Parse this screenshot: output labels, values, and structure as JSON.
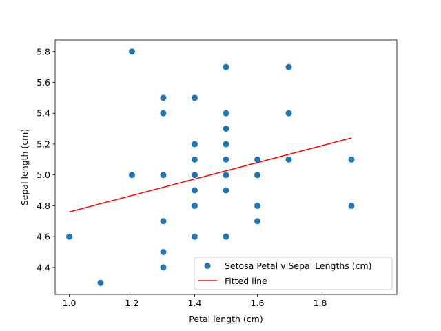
{
  "chart_data": {
    "type": "scatter",
    "title": "",
    "xlabel": "Petal length (cm)",
    "ylabel": "Sepal length (cm)",
    "xlim": [
      0.955,
      2.045
    ],
    "ylim": [
      4.225,
      5.875
    ],
    "x_ticks": [
      1.0,
      1.2,
      1.4,
      1.6,
      1.8
    ],
    "x_tick_labels": [
      "1.0",
      "1.2",
      "1.4",
      "1.6",
      "1.8"
    ],
    "y_ticks": [
      4.4,
      4.6,
      4.8,
      5.0,
      5.2,
      5.4,
      5.6,
      5.8
    ],
    "y_tick_labels": [
      "4.4",
      "4.6",
      "4.8",
      "5.0",
      "5.2",
      "5.4",
      "5.6",
      "5.8"
    ],
    "grid": false,
    "legend_position": "lower-right",
    "series": [
      {
        "name": "Setosa Petal v Sepal Lengths (cm)",
        "kind": "scatter",
        "color": "#1f77b4",
        "points": [
          [
            1.0,
            4.6
          ],
          [
            1.1,
            4.3
          ],
          [
            1.2,
            5.8
          ],
          [
            1.2,
            5.0
          ],
          [
            1.3,
            5.5
          ],
          [
            1.3,
            5.4
          ],
          [
            1.3,
            5.0
          ],
          [
            1.3,
            4.7
          ],
          [
            1.3,
            4.5
          ],
          [
            1.3,
            4.4
          ],
          [
            1.4,
            5.5
          ],
          [
            1.4,
            5.2
          ],
          [
            1.4,
            5.1
          ],
          [
            1.4,
            5.0
          ],
          [
            1.4,
            4.9
          ],
          [
            1.4,
            4.8
          ],
          [
            1.4,
            4.6
          ],
          [
            1.5,
            5.7
          ],
          [
            1.5,
            5.4
          ],
          [
            1.5,
            5.3
          ],
          [
            1.5,
            5.2
          ],
          [
            1.5,
            5.1
          ],
          [
            1.5,
            5.0
          ],
          [
            1.5,
            4.9
          ],
          [
            1.5,
            4.6
          ],
          [
            1.6,
            5.1
          ],
          [
            1.6,
            5.0
          ],
          [
            1.6,
            4.8
          ],
          [
            1.6,
            4.7
          ],
          [
            1.7,
            5.7
          ],
          [
            1.7,
            5.4
          ],
          [
            1.7,
            5.1
          ],
          [
            1.9,
            5.1
          ],
          [
            1.9,
            4.8
          ]
        ]
      },
      {
        "name": "Fitted line",
        "kind": "line",
        "color": "#ff0000",
        "points": [
          [
            1.0,
            4.76
          ],
          [
            1.9,
            5.24
          ]
        ]
      }
    ]
  }
}
